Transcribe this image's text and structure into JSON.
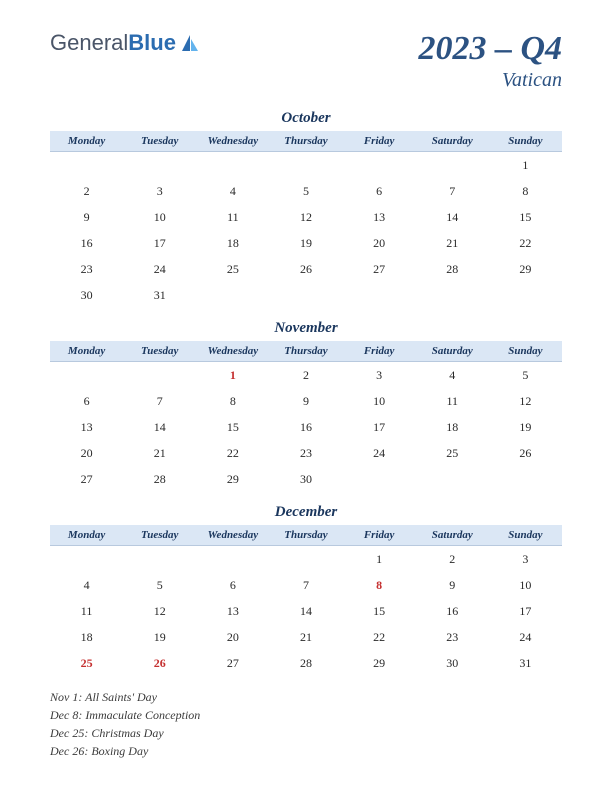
{
  "logo": {
    "part1": "General",
    "part2": "Blue"
  },
  "title": {
    "main": "2023 – Q4",
    "sub": "Vatican"
  },
  "day_headers": [
    "Monday",
    "Tuesday",
    "Wednesday",
    "Thursday",
    "Friday",
    "Saturday",
    "Sunday"
  ],
  "colors": {
    "header_bg": "#dbe7f5",
    "header_text": "#1a365d",
    "title_text": "#2c5282",
    "holiday_text": "#c53030",
    "body_text": "#2a2a2a"
  },
  "months": [
    {
      "name": "October",
      "weeks": [
        [
          "",
          "",
          "",
          "",
          "",
          "",
          "1"
        ],
        [
          "2",
          "3",
          "4",
          "5",
          "6",
          "7",
          "8"
        ],
        [
          "9",
          "10",
          "11",
          "12",
          "13",
          "14",
          "15"
        ],
        [
          "16",
          "17",
          "18",
          "19",
          "20",
          "21",
          "22"
        ],
        [
          "23",
          "24",
          "25",
          "26",
          "27",
          "28",
          "29"
        ],
        [
          "30",
          "31",
          "",
          "",
          "",
          "",
          ""
        ]
      ],
      "holidays": []
    },
    {
      "name": "November",
      "weeks": [
        [
          "",
          "",
          "1",
          "2",
          "3",
          "4",
          "5"
        ],
        [
          "6",
          "7",
          "8",
          "9",
          "10",
          "11",
          "12"
        ],
        [
          "13",
          "14",
          "15",
          "16",
          "17",
          "18",
          "19"
        ],
        [
          "20",
          "21",
          "22",
          "23",
          "24",
          "25",
          "26"
        ],
        [
          "27",
          "28",
          "29",
          "30",
          "",
          "",
          ""
        ]
      ],
      "holidays": [
        "1"
      ]
    },
    {
      "name": "December",
      "weeks": [
        [
          "",
          "",
          "",
          "",
          "1",
          "2",
          "3"
        ],
        [
          "4",
          "5",
          "6",
          "7",
          "8",
          "9",
          "10"
        ],
        [
          "11",
          "12",
          "13",
          "14",
          "15",
          "16",
          "17"
        ],
        [
          "18",
          "19",
          "20",
          "21",
          "22",
          "23",
          "24"
        ],
        [
          "25",
          "26",
          "27",
          "28",
          "29",
          "30",
          "31"
        ]
      ],
      "holidays": [
        "8",
        "25",
        "26"
      ]
    }
  ],
  "holiday_list": [
    "Nov 1: All Saints' Day",
    "Dec 8: Immaculate Conception",
    "Dec 25: Christmas Day",
    "Dec 26: Boxing Day"
  ]
}
